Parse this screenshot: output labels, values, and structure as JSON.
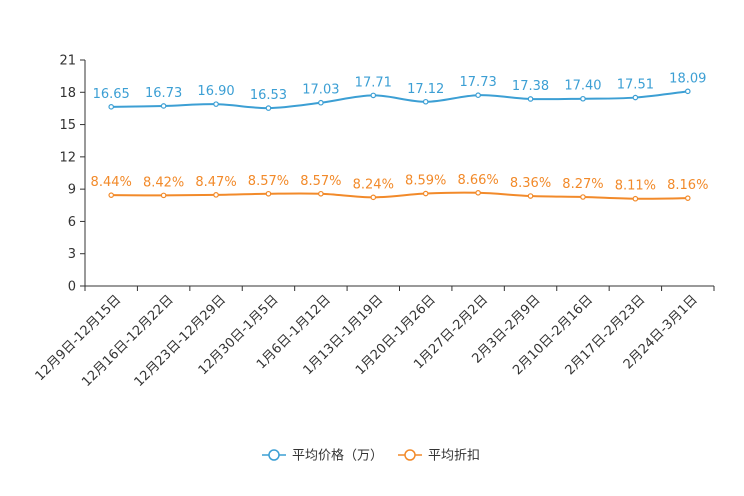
{
  "chart_data": {
    "type": "line",
    "categories": [
      "12月9日-12月15日",
      "12月16日-12月22日",
      "12月23日-12月29日",
      "12月30日-1月5日",
      "1月6日-1月12日",
      "1月13日-1月19日",
      "1月20日-1月26日",
      "1月27日-2月2日",
      "2月3日-2月9日",
      "2月10日-2月16日",
      "2月17日-2月23日",
      "2月24日-3月1日"
    ],
    "yticks": [
      0,
      3,
      6,
      9,
      12,
      15,
      18,
      21
    ],
    "ylim": [
      0,
      21
    ],
    "series": [
      {
        "name": "平均价格（万）",
        "color": "#3c9fd4",
        "values": [
          16.65,
          16.73,
          16.9,
          16.53,
          17.03,
          17.71,
          17.12,
          17.73,
          17.38,
          17.4,
          17.51,
          18.09
        ],
        "labels": [
          "16.65",
          "16.73",
          "16.90",
          "16.53",
          "17.03",
          "17.71",
          "17.12",
          "17.73",
          "17.38",
          "17.40",
          "17.51",
          "18.09"
        ]
      },
      {
        "name": "平均折扣",
        "color": "#f28a2a",
        "values": [
          8.44,
          8.42,
          8.47,
          8.57,
          8.57,
          8.24,
          8.59,
          8.66,
          8.36,
          8.27,
          8.11,
          8.16
        ],
        "labels": [
          "8.44%",
          "8.42%",
          "8.47%",
          "8.57%",
          "8.57%",
          "8.24%",
          "8.59%",
          "8.66%",
          "8.36%",
          "8.27%",
          "8.11%",
          "8.16%"
        ]
      }
    ],
    "legend_position": "bottom-center",
    "grid": false
  }
}
